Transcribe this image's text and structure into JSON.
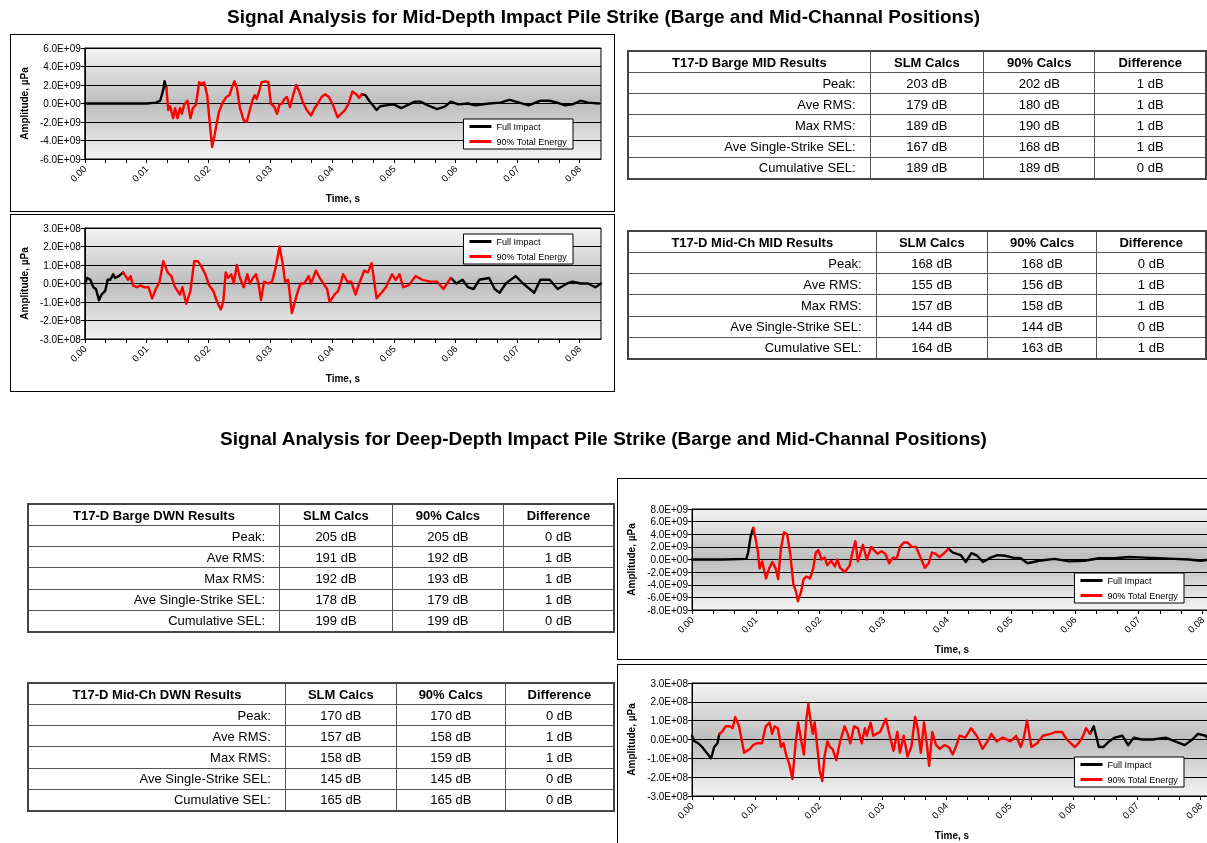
{
  "chart_data": [
    {
      "type": "line",
      "title": "Signal Analysis for Mid-Depth Impact Pile Strike (Barge and Mid-Channal Positions)",
      "xlabel": "Time, s",
      "ylabel": "Amplitude, µPa",
      "grid": "y",
      "legend": "bottom right",
      "xlim": [
        0,
        0.0835
      ],
      "ylim": [
        -6000000000.0,
        6000000000.0
      ],
      "yticks": [
        {
          "value": -6000000000.0,
          "label": "-6.0E+09"
        },
        {
          "value": -4000000000.0,
          "label": "-4.0E+09"
        },
        {
          "value": -2000000000.0,
          "label": "-2.0E+09"
        },
        {
          "value": 0,
          "label": "0.0E+00"
        },
        {
          "value": 2000000000.0,
          "label": "2.0E+09"
        },
        {
          "value": 4000000000.0,
          "label": "4.0E+09"
        },
        {
          "value": 6000000000.0,
          "label": "6.0E+09"
        }
      ],
      "xticks": [
        {
          "value": 0,
          "label": "0.00"
        },
        {
          "value": 0.00333,
          "label": null
        },
        {
          "value": 0.00667,
          "label": null
        },
        {
          "value": 0.01,
          "label": "0.01"
        },
        {
          "value": 0.01333,
          "label": null
        },
        {
          "value": 0.01667,
          "label": null
        },
        {
          "value": 0.02,
          "label": "0.02"
        },
        {
          "value": 0.02333,
          "label": null
        },
        {
          "value": 0.02667,
          "label": null
        },
        {
          "value": 0.03,
          "label": "0.03"
        },
        {
          "value": 0.03333,
          "label": null
        },
        {
          "value": 0.03667,
          "label": null
        },
        {
          "value": 0.04,
          "label": "0.04"
        },
        {
          "value": 0.04333,
          "label": null
        },
        {
          "value": 0.04667,
          "label": null
        },
        {
          "value": 0.05,
          "label": "0.05"
        },
        {
          "value": 0.05333,
          "label": null
        },
        {
          "value": 0.05667,
          "label": null
        },
        {
          "value": 0.06,
          "label": "0.06"
        },
        {
          "value": 0.06333,
          "label": null
        },
        {
          "value": 0.06667,
          "label": null
        },
        {
          "value": 0.07,
          "label": "0.07"
        },
        {
          "value": 0.07333,
          "label": null
        },
        {
          "value": 0.07667,
          "label": null
        },
        {
          "value": 0.08,
          "label": "0.08"
        }
      ],
      "series": [
        {
          "name": "Full Impact",
          "color": "#000000",
          "x": [
            0,
            0.005,
            0.01,
            0.0115,
            0.0122,
            0.0127,
            0.0129,
            0.0132,
            0.03,
            0.0448,
            0.0454,
            0.046,
            0.0466,
            0.0472,
            0.0478,
            0.0487,
            0.05,
            0.0512,
            0.0521,
            0.0534,
            0.0543,
            0.0555,
            0.057,
            0.0583,
            0.0592,
            0.0604,
            0.062,
            0.0632,
            0.0654,
            0.0672,
            0.0687,
            0.0703,
            0.0718,
            0.0737,
            0.0752,
            0.0764,
            0.0777,
            0.0789,
            0.0802,
            0.0814,
            0.0832
          ],
          "values": [
            0,
            0,
            0,
            100000000.0,
            300000000.0,
            1500000000.0,
            2400000000.0,
            1700000000.0,
            null,
            1000000000.0,
            900000000.0,
            300000000.0,
            -200000000.0,
            -700000000.0,
            -300000000.0,
            -200000000.0,
            -100000000.0,
            -500000000.0,
            -200000000.0,
            200000000.0,
            200000000.0,
            -200000000.0,
            -600000000.0,
            -300000000.0,
            200000000.0,
            -100000000.0,
            0,
            -200000000.0,
            0,
            100000000.0,
            400000000.0,
            100000000.0,
            -200000000.0,
            300000000.0,
            300000000.0,
            100000000.0,
            -200000000.0,
            -100000000.0,
            300000000.0,
            100000000.0,
            0
          ]
        },
        {
          "name": "90% Total Energy",
          "color": "#ff0000",
          "x": [
            0.0132,
            0.0135,
            0.0138,
            0.0143,
            0.0146,
            0.015,
            0.0154,
            0.0157,
            0.0161,
            0.0166,
            0.0171,
            0.0175,
            0.018,
            0.0185,
            0.0189,
            0.0193,
            0.0198,
            0.0202,
            0.0206,
            0.021,
            0.0217,
            0.0223,
            0.0229,
            0.0234,
            0.0238,
            0.0242,
            0.0246,
            0.0251,
            0.0257,
            0.0262,
            0.0267,
            0.0272,
            0.0275,
            0.0278,
            0.0282,
            0.0286,
            0.0292,
            0.0297,
            0.0301,
            0.0306,
            0.0311,
            0.0315,
            0.0319,
            0.0323,
            0.0327,
            0.0332,
            0.0337,
            0.0342,
            0.0347,
            0.0353,
            0.0359,
            0.0366,
            0.0372,
            0.0377,
            0.0383,
            0.0389,
            0.0395,
            0.0401,
            0.0409,
            0.0415,
            0.0421,
            0.0426,
            0.0433,
            0.0439,
            0.0444,
            0.0448
          ],
          "values": [
            1700000000.0,
            -700000000.0,
            -300000000.0,
            -1600000000.0,
            -500000000.0,
            -1600000000.0,
            -500000000.0,
            -1100000000.0,
            -100000000.0,
            300000000.0,
            -1600000000.0,
            -500000000.0,
            -100000000.0,
            2300000000.0,
            2100000000.0,
            2300000000.0,
            900000000.0,
            -2000000000.0,
            -4700000000.0,
            -3400000000.0,
            -900000000.0,
            100000000.0,
            700000000.0,
            900000000.0,
            1700000000.0,
            2400000000.0,
            1700000000.0,
            -500000000.0,
            -1800000000.0,
            -2000000000.0,
            -700000000.0,
            500000000.0,
            900000000.0,
            500000000.0,
            1300000000.0,
            2300000000.0,
            2400000000.0,
            2300000000.0,
            0,
            -300000000.0,
            -1100000000.0,
            -100000000.0,
            0,
            500000000.0,
            700000000.0,
            -400000000.0,
            900000000.0,
            2000000000.0,
            1300000000.0,
            100000000.0,
            -700000000.0,
            -1300000000.0,
            -500000000.0,
            0,
            700000000.0,
            1000000000.0,
            700000000.0,
            -100000000.0,
            -1500000000.0,
            -1100000000.0,
            -700000000.0,
            -100000000.0,
            1300000000.0,
            1000000000.0,
            600000000.0,
            1000000000.0
          ]
        }
      ]
    },
    {
      "type": "other",
      "categories": [
        "T17-D Barge MID Results",
        "SLM Calcs",
        "90% Calcs",
        "Difference"
      ],
      "annotations": [
        "Peak:",
        "203 dB",
        "202 dB",
        "1 dB",
        "Ave RMS:",
        "179 dB",
        "180 dB",
        "1 dB",
        "Max RMS:",
        "189 dB",
        "190 dB",
        "1 dB",
        "Ave Single-Strike SEL:",
        "167 dB",
        "168 dB",
        "1 dB",
        "Cumulative SEL:",
        "189 dB",
        "189 dB",
        "0 dB"
      ]
    },
    {
      "type": "line",
      "xlabel": "Time, s",
      "ylabel": "Amplitude, µPa",
      "grid": "y",
      "legend": "top right",
      "xlim": [
        0,
        0.0835
      ],
      "ylim": [
        -300000000.0,
        300000000.0
      ],
      "yticks": [
        {
          "value": -300000000.0,
          "label": "-3.0E+08"
        },
        {
          "value": -200000000.0,
          "label": "-2.0E+08"
        },
        {
          "value": -100000000.0,
          "label": "-1.0E+08"
        },
        {
          "value": 0,
          "label": "0.0E+00"
        },
        {
          "value": 100000000.0,
          "label": "1.0E+08"
        },
        {
          "value": 200000000.0,
          "label": "2.0E+08"
        },
        {
          "value": 300000000.0,
          "label": "3.0E+08"
        }
      ],
      "xticks": [
        {
          "value": 0,
          "label": "0.00"
        },
        {
          "value": 0.00333,
          "label": null
        },
        {
          "value": 0.00667,
          "label": null
        },
        {
          "value": 0.01,
          "label": "0.01"
        },
        {
          "value": 0.01333,
          "label": null
        },
        {
          "value": 0.01667,
          "label": null
        },
        {
          "value": 0.02,
          "label": "0.02"
        },
        {
          "value": 0.02333,
          "label": null
        },
        {
          "value": 0.02667,
          "label": null
        },
        {
          "value": 0.03,
          "label": "0.03"
        },
        {
          "value": 0.03333,
          "label": null
        },
        {
          "value": 0.03667,
          "label": null
        },
        {
          "value": 0.04,
          "label": "0.04"
        },
        {
          "value": 0.04333,
          "label": null
        },
        {
          "value": 0.04667,
          "label": null
        },
        {
          "value": 0.05,
          "label": "0.05"
        },
        {
          "value": 0.05333,
          "label": null
        },
        {
          "value": 0.05667,
          "label": null
        },
        {
          "value": 0.06,
          "label": "0.06"
        },
        {
          "value": 0.06333,
          "label": null
        },
        {
          "value": 0.06667,
          "label": null
        },
        {
          "value": 0.07,
          "label": "0.07"
        },
        {
          "value": 0.07333,
          "label": null
        },
        {
          "value": 0.07667,
          "label": null
        },
        {
          "value": 0.08,
          "label": "0.08"
        }
      ],
      "series": [
        {
          "name": "Full Impact",
          "color": "#000000",
          "x": [
            0,
            0.0004,
            0.0009,
            0.0014,
            0.0018,
            0.0023,
            0.0027,
            0.0033,
            0.0037,
            0.0041,
            0.0046,
            0.0049,
            0.0055,
            0.0062,
            0.03,
            0.0592,
            0.0601,
            0.0611,
            0.062,
            0.0629,
            0.0638,
            0.0654,
            0.0663,
            0.0671,
            0.0681,
            0.0697,
            0.0709,
            0.0727,
            0.0737,
            0.0752,
            0.0765,
            0.078,
            0.0789,
            0.0802,
            0.0814,
            0.0826,
            0.0835
          ],
          "values": [
            0,
            30000000.0,
            20000000.0,
            -20000000.0,
            -30000000.0,
            -90000000.0,
            -60000000.0,
            -40000000.0,
            20000000.0,
            20000000.0,
            50000000.0,
            30000000.0,
            40000000.0,
            60000000.0,
            null,
            30000000.0,
            0,
            20000000.0,
            -20000000.0,
            -30000000.0,
            20000000.0,
            30000000.0,
            -30000000.0,
            -50000000.0,
            0,
            40000000.0,
            0,
            -50000000.0,
            20000000.0,
            20000000.0,
            -30000000.0,
            0,
            10000000.0,
            0,
            0,
            -20000000.0,
            0
          ]
        },
        {
          "name": "90% Total Energy",
          "color": "#ff0000",
          "x": [
            0.0062,
            0.0066,
            0.007,
            0.0074,
            0.0078,
            0.0084,
            0.009,
            0.0096,
            0.0103,
            0.0109,
            0.0115,
            0.0121,
            0.0127,
            0.0134,
            0.014,
            0.0146,
            0.0154,
            0.0158,
            0.0164,
            0.0171,
            0.0177,
            0.0183,
            0.0189,
            0.0195,
            0.0201,
            0.0208,
            0.0214,
            0.022,
            0.0224,
            0.0228,
            0.0232,
            0.0237,
            0.0241,
            0.0246,
            0.0251,
            0.0257,
            0.0263,
            0.0267,
            0.0272,
            0.0277,
            0.0281,
            0.0285,
            0.029,
            0.0297,
            0.0303,
            0.0309,
            0.0315,
            0.032,
            0.0324,
            0.0329,
            0.0335,
            0.0343,
            0.0349,
            0.0355,
            0.0362,
            0.0366,
            0.0374,
            0.038,
            0.0386,
            0.0392,
            0.0396,
            0.0404,
            0.041,
            0.0418,
            0.0425,
            0.0431,
            0.0438,
            0.0444,
            0.0452,
            0.0458,
            0.0464,
            0.0472,
            0.048,
            0.0487,
            0.0497,
            0.0503,
            0.0509,
            0.0515,
            0.0524,
            0.0535,
            0.0546,
            0.0558,
            0.057,
            0.058,
            0.0592
          ],
          "values": [
            60000000.0,
            40000000.0,
            20000000.0,
            40000000.0,
            -10000000.0,
            -20000000.0,
            -10000000.0,
            -20000000.0,
            -20000000.0,
            -80000000.0,
            -30000000.0,
            10000000.0,
            120000000.0,
            60000000.0,
            40000000.0,
            -20000000.0,
            -60000000.0,
            -20000000.0,
            -110000000.0,
            -40000000.0,
            120000000.0,
            120000000.0,
            90000000.0,
            50000000.0,
            -10000000.0,
            -40000000.0,
            -100000000.0,
            -140000000.0,
            -100000000.0,
            60000000.0,
            30000000.0,
            50000000.0,
            0,
            100000000.0,
            30000000.0,
            -20000000.0,
            50000000.0,
            0,
            30000000.0,
            50000000.0,
            0,
            -90000000.0,
            10000000.0,
            0,
            10000000.0,
            90000000.0,
            200000000.0,
            110000000.0,
            10000000.0,
            20000000.0,
            -160000000.0,
            -60000000.0,
            0,
            0,
            40000000.0,
            0,
            70000000.0,
            30000000.0,
            0,
            -30000000.0,
            -100000000.0,
            -60000000.0,
            -40000000.0,
            50000000.0,
            10000000.0,
            10000000.0,
            -60000000.0,
            0,
            70000000.0,
            60000000.0,
            110000000.0,
            -80000000.0,
            -50000000.0,
            -20000000.0,
            50000000.0,
            20000000.0,
            50000000.0,
            -20000000.0,
            -10000000.0,
            40000000.0,
            20000000.0,
            10000000.0,
            10000000.0,
            -30000000.0,
            30000000.0
          ]
        }
      ]
    },
    {
      "type": "other",
      "categories": [
        "T17-D Mid-Ch MID Results",
        "SLM Calcs",
        "90% Calcs",
        "Difference"
      ],
      "annotations": [
        "Peak:",
        "168 dB",
        "168 dB",
        "0 dB",
        "Ave RMS:",
        "155 dB",
        "156 dB",
        "1 dB",
        "Max RMS:",
        "157 dB",
        "158 dB",
        "1 dB",
        "Ave Single-Strike SEL:",
        "144 dB",
        "144 dB",
        "0 dB",
        "Cumulative SEL:",
        "164 dB",
        "163 dB",
        "1 dB"
      ]
    },
    {
      "type": "other",
      "title": "Signal Analysis for Deep-Depth Impact Pile Strike (Barge and Mid-Channal Positions)",
      "categories": [
        "T17-D Barge DWN Results",
        "SLM Calcs",
        "90% Calcs",
        "Difference"
      ],
      "annotations": [
        "Peak:",
        "205 dB",
        "205 dB",
        "0 dB",
        "Ave RMS:",
        "191 dB",
        "192 dB",
        "1 dB",
        "Max RMS:",
        "192 dB",
        "193 dB",
        "1 dB",
        "Ave Single-Strike SEL:",
        "178 dB",
        "179 dB",
        "1 dB",
        "Cumulative SEL:",
        "199 dB",
        "199 dB",
        "0 dB"
      ]
    },
    {
      "type": "line",
      "xlabel": "Time, s",
      "ylabel": "Amplitude, µPa",
      "grid": "y",
      "legend": "bottom right",
      "xlim": [
        0,
        0.0815
      ],
      "ylim": [
        -8000000000.0,
        8000000000.0
      ],
      "yticks": [
        {
          "value": -8000000000.0,
          "label": "-8.0E+09"
        },
        {
          "value": -6000000000.0,
          "label": "-6.0E+09"
        },
        {
          "value": -4000000000.0,
          "label": "-4.0E+09"
        },
        {
          "value": -2000000000.0,
          "label": "-2.0E+09"
        },
        {
          "value": 0,
          "label": "0.0E+00"
        },
        {
          "value": 2000000000.0,
          "label": "2.0E+09"
        },
        {
          "value": 4000000000.0,
          "label": "4.0E+09"
        },
        {
          "value": 6000000000.0,
          "label": "6.0E+09"
        },
        {
          "value": 8000000000.0,
          "label": "8.0E+09"
        }
      ],
      "xticks": [
        {
          "value": 0,
          "label": "0.00"
        },
        {
          "value": 0.00333,
          "label": null
        },
        {
          "value": 0.00667,
          "label": null
        },
        {
          "value": 0.01,
          "label": "0.01"
        },
        {
          "value": 0.01333,
          "label": null
        },
        {
          "value": 0.01667,
          "label": null
        },
        {
          "value": 0.02,
          "label": "0.02"
        },
        {
          "value": 0.02333,
          "label": null
        },
        {
          "value": 0.02667,
          "label": null
        },
        {
          "value": 0.03,
          "label": "0.03"
        },
        {
          "value": 0.03333,
          "label": null
        },
        {
          "value": 0.03667,
          "label": null
        },
        {
          "value": 0.04,
          "label": "0.04"
        },
        {
          "value": 0.04333,
          "label": null
        },
        {
          "value": 0.04667,
          "label": null
        },
        {
          "value": 0.05,
          "label": "0.05"
        },
        {
          "value": 0.05333,
          "label": null
        },
        {
          "value": 0.05667,
          "label": null
        },
        {
          "value": 0.06,
          "label": "0.06"
        },
        {
          "value": 0.06333,
          "label": null
        },
        {
          "value": 0.06667,
          "label": null
        },
        {
          "value": 0.07,
          "label": "0.07"
        },
        {
          "value": 0.07333,
          "label": null
        },
        {
          "value": 0.07667,
          "label": null
        },
        {
          "value": 0.08,
          "label": "0.08"
        }
      ],
      "series": [
        {
          "name": "Full Impact",
          "color": "#000000",
          "x": [
            0,
            0.005,
            0.0085,
            0.0088,
            0.0092,
            0.0096,
            0.025,
            0.0402,
            0.0409,
            0.0421,
            0.0429,
            0.0438,
            0.0447,
            0.0456,
            0.0468,
            0.0479,
            0.0491,
            0.0503,
            0.0515,
            0.0526,
            0.0544,
            0.0568,
            0.0591,
            0.0615,
            0.0638,
            0.0662,
            0.0685,
            0.0709,
            0.0732,
            0.0756,
            0.0779,
            0.0797,
            0.0812
          ],
          "values": [
            0,
            0,
            100000000.0,
            1100000000.0,
            3700000000.0,
            5000000000.0,
            null,
            1700000000.0,
            1100000000.0,
            700000000.0,
            -400000000.0,
            1000000000.0,
            600000000.0,
            -400000000.0,
            300000000.0,
            700000000.0,
            600000000.0,
            300000000.0,
            200000000.0,
            -600000000.0,
            -200000000.0,
            100000000.0,
            -300000000.0,
            -200000000.0,
            200000000.0,
            200000000.0,
            400000000.0,
            300000000.0,
            200000000.0,
            100000000.0,
            0,
            -200000000.0,
            0
          ]
        },
        {
          "name": "90% Total Energy",
          "color": "#ff0000",
          "x": [
            0.0096,
            0.01,
            0.0103,
            0.0106,
            0.011,
            0.0116,
            0.0121,
            0.0126,
            0.0131,
            0.0135,
            0.0139,
            0.0144,
            0.0149,
            0.0154,
            0.0159,
            0.0163,
            0.0166,
            0.0171,
            0.0175,
            0.0179,
            0.0185,
            0.019,
            0.0194,
            0.0198,
            0.0203,
            0.0208,
            0.0212,
            0.0218,
            0.0224,
            0.0228,
            0.0232,
            0.0239,
            0.0247,
            0.0251,
            0.0256,
            0.026,
            0.0268,
            0.0274,
            0.0281,
            0.0286,
            0.0291,
            0.0297,
            0.0303,
            0.0309,
            0.0315,
            0.0321,
            0.0326,
            0.0332,
            0.0338,
            0.0344,
            0.0351,
            0.0357,
            0.0365,
            0.0371,
            0.0376,
            0.0382,
            0.0388,
            0.0394,
            0.0402
          ],
          "values": [
            5000000000.0,
            3100000000.0,
            1400000000.0,
            -1400000000.0,
            -300000000.0,
            -3000000000.0,
            -1400000000.0,
            -400000000.0,
            -1400000000.0,
            -3100000000.0,
            1400000000.0,
            4300000000.0,
            4000000000.0,
            900000000.0,
            -4000000000.0,
            -5100000000.0,
            -6600000000.0,
            -5100000000.0,
            -3100000000.0,
            -2700000000.0,
            -3000000000.0,
            -1400000000.0,
            1100000000.0,
            1500000000.0,
            0,
            300000000.0,
            -900000000.0,
            -200000000.0,
            -1100000000.0,
            0,
            -1300000000.0,
            -2000000000.0,
            -1000000000.0,
            900000000.0,
            2900000000.0,
            -300000000.0,
            2300000000.0,
            0,
            2000000000.0,
            1400000000.0,
            900000000.0,
            1300000000.0,
            900000000.0,
            -600000000.0,
            300000000.0,
            200000000.0,
            2000000000.0,
            2700000000.0,
            2700000000.0,
            2000000000.0,
            2000000000.0,
            600000000.0,
            -1300000000.0,
            -600000000.0,
            1100000000.0,
            900000000.0,
            400000000.0,
            900000000.0,
            1700000000.0
          ]
        }
      ]
    },
    {
      "type": "other",
      "categories": [
        "T17-D Mid-Ch DWN Results",
        "SLM Calcs",
        "90% Calcs",
        "Difference"
      ],
      "annotations": [
        "Peak:",
        "170 dB",
        "170 dB",
        "0 dB",
        "Ave RMS:",
        "157 dB",
        "158 dB",
        "1 dB",
        "Max RMS:",
        "158 dB",
        "159 dB",
        "1 dB",
        "Ave Single-Strike SEL:",
        "145 dB",
        "145 dB",
        "0 dB",
        "Cumulative SEL:",
        "165 dB",
        "165 dB",
        "0 dB"
      ]
    },
    {
      "type": "line",
      "xlabel": "Time, s",
      "ylabel": "Amplitude, µPa",
      "grid": "y",
      "legend": "bottom right",
      "xlim": [
        0,
        0.0818
      ],
      "ylim": [
        -300000000.0,
        300000000.0
      ],
      "yticks": [
        {
          "value": -300000000.0,
          "label": "-3.0E+08"
        },
        {
          "value": -200000000.0,
          "label": "-2.0E+08"
        },
        {
          "value": -100000000.0,
          "label": "-1.0E+08"
        },
        {
          "value": 0,
          "label": "0.0E+00"
        },
        {
          "value": 100000000.0,
          "label": "1.0E+08"
        },
        {
          "value": 200000000.0,
          "label": "2.0E+08"
        },
        {
          "value": 300000000.0,
          "label": "3.0E+08"
        }
      ],
      "xticks": [
        {
          "value": 0,
          "label": "0.00"
        },
        {
          "value": 0.00333,
          "label": null
        },
        {
          "value": 0.00667,
          "label": null
        },
        {
          "value": 0.01,
          "label": "0.01"
        },
        {
          "value": 0.01333,
          "label": null
        },
        {
          "value": 0.01667,
          "label": null
        },
        {
          "value": 0.02,
          "label": "0.02"
        },
        {
          "value": 0.02333,
          "label": null
        },
        {
          "value": 0.02667,
          "label": null
        },
        {
          "value": 0.03,
          "label": "0.03"
        },
        {
          "value": 0.03333,
          "label": null
        },
        {
          "value": 0.03667,
          "label": null
        },
        {
          "value": 0.04,
          "label": "0.04"
        },
        {
          "value": 0.04333,
          "label": null
        },
        {
          "value": 0.04667,
          "label": null
        },
        {
          "value": 0.05,
          "label": "0.05"
        },
        {
          "value": 0.05333,
          "label": null
        },
        {
          "value": 0.05667,
          "label": null
        },
        {
          "value": 0.06,
          "label": "0.06"
        },
        {
          "value": 0.06333,
          "label": null
        },
        {
          "value": 0.06667,
          "label": null
        },
        {
          "value": 0.07,
          "label": "0.07"
        },
        {
          "value": 0.07333,
          "label": null
        },
        {
          "value": 0.07667,
          "label": null
        },
        {
          "value": 0.08,
          "label": "0.08"
        }
      ],
      "series": [
        {
          "name": "Full Impact",
          "color": "#000000",
          "x": [
            0,
            0.0004,
            0.001,
            0.0016,
            0.0023,
            0.003,
            0.0035,
            0.004,
            0.0043,
            0.03,
            0.0626,
            0.0632,
            0.064,
            0.0647,
            0.0656,
            0.0665,
            0.0677,
            0.0686,
            0.0695,
            0.0707,
            0.0725,
            0.0745,
            0.076,
            0.0775,
            0.0787,
            0.0796,
            0.0808,
            0.0818
          ],
          "values": [
            20000000.0,
            -10000000.0,
            -20000000.0,
            -40000000.0,
            -70000000.0,
            -100000000.0,
            -40000000.0,
            -20000000.0,
            30000000.0,
            null,
            30000000.0,
            70000000.0,
            -40000000.0,
            -40000000.0,
            -10000000.0,
            10000000.0,
            20000000.0,
            -30000000.0,
            10000000.0,
            0,
            0,
            10000000.0,
            -10000000.0,
            -30000000.0,
            0,
            30000000.0,
            20000000.0,
            -20000000.0
          ]
        },
        {
          "name": "90% Total Energy",
          "color": "#ff0000",
          "x": [
            0.0043,
            0.0047,
            0.0053,
            0.0059,
            0.0064,
            0.0068,
            0.0074,
            0.0082,
            0.0091,
            0.0096,
            0.0102,
            0.011,
            0.0116,
            0.0122,
            0.0126,
            0.013,
            0.0135,
            0.014,
            0.0144,
            0.0148,
            0.0153,
            0.0158,
            0.0163,
            0.0167,
            0.0172,
            0.0176,
            0.018,
            0.0183,
            0.0186,
            0.019,
            0.0193,
            0.0198,
            0.0201,
            0.0205,
            0.0208,
            0.0213,
            0.0217,
            0.0221,
            0.0227,
            0.0233,
            0.024,
            0.0245,
            0.0249,
            0.0255,
            0.0261,
            0.0267,
            0.0272,
            0.0275,
            0.0281,
            0.0285,
            0.029,
            0.0296,
            0.0305,
            0.0311,
            0.0317,
            0.0323,
            0.0327,
            0.0333,
            0.0339,
            0.0345,
            0.0351,
            0.0355,
            0.036,
            0.0365,
            0.037,
            0.0373,
            0.0378,
            0.0384,
            0.039,
            0.0397,
            0.0404,
            0.041,
            0.0415,
            0.0421,
            0.043,
            0.0439,
            0.0448,
            0.0457,
            0.0465,
            0.0471,
            0.0479,
            0.0489,
            0.0501,
            0.051,
            0.0517,
            0.0522,
            0.0527,
            0.0534,
            0.0543,
            0.0552,
            0.0564,
            0.0573,
            0.0582,
            0.059,
            0.0602,
            0.0608,
            0.0614,
            0.062,
            0.0626
          ],
          "values": [
            30000000.0,
            40000000.0,
            70000000.0,
            70000000.0,
            60000000.0,
            120000000.0,
            70000000.0,
            -70000000.0,
            -50000000.0,
            -30000000.0,
            -20000000.0,
            -20000000.0,
            70000000.0,
            90000000.0,
            30000000.0,
            70000000.0,
            60000000.0,
            -40000000.0,
            -20000000.0,
            -80000000.0,
            -130000000.0,
            -210000000.0,
            -20000000.0,
            90000000.0,
            -10000000.0,
            -80000000.0,
            110000000.0,
            190000000.0,
            110000000.0,
            30000000.0,
            90000000.0,
            -70000000.0,
            -170000000.0,
            -220000000.0,
            -100000000.0,
            -10000000.0,
            -40000000.0,
            -50000000.0,
            -110000000.0,
            -10000000.0,
            70000000.0,
            30000000.0,
            -20000000.0,
            70000000.0,
            60000000.0,
            -20000000.0,
            60000000.0,
            20000000.0,
            90000000.0,
            20000000.0,
            30000000.0,
            40000000.0,
            110000000.0,
            20000000.0,
            -60000000.0,
            40000000.0,
            -70000000.0,
            20000000.0,
            -90000000.0,
            -40000000.0,
            120000000.0,
            60000000.0,
            -70000000.0,
            90000000.0,
            -40000000.0,
            -140000000.0,
            40000000.0,
            -30000000.0,
            -50000000.0,
            -30000000.0,
            -40000000.0,
            -80000000.0,
            -40000000.0,
            20000000.0,
            10000000.0,
            60000000.0,
            20000000.0,
            -50000000.0,
            -10000000.0,
            30000000.0,
            -10000000.0,
            10000000.0,
            -10000000.0,
            20000000.0,
            -40000000.0,
            10000000.0,
            100000000.0,
            -40000000.0,
            -20000000.0,
            20000000.0,
            30000000.0,
            40000000.0,
            40000000.0,
            0,
            -40000000.0,
            -20000000.0,
            10000000.0,
            60000000.0,
            30000000.0
          ]
        }
      ]
    }
  ]
}
